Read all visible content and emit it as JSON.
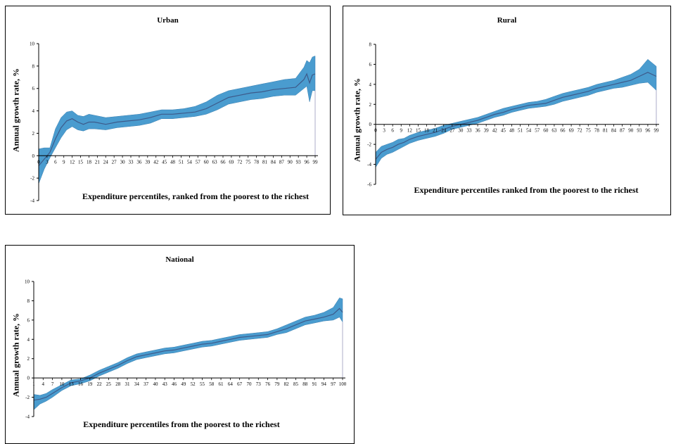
{
  "chart_data": [
    {
      "id": "urban",
      "type": "area",
      "title": "Urban",
      "xlabel": "Expenditure percentiles, ranked from the poorest to the richest",
      "ylabel": "Annual growth rate, %",
      "ylim": [
        -4,
        10
      ],
      "yticks": [
        "-4",
        "-2",
        "0",
        "2",
        "4",
        "6",
        "8",
        "10"
      ],
      "xticks": [
        "0",
        "3",
        "6",
        "9",
        "12",
        "15",
        "18",
        "21",
        "24",
        "27",
        "30",
        "33",
        "36",
        "39",
        "42",
        "45",
        "48",
        "51",
        "54",
        "57",
        "60",
        "63",
        "66",
        "69",
        "72",
        "75",
        "78",
        "81",
        "84",
        "87",
        "90",
        "93",
        "96",
        "99"
      ],
      "xlim": [
        0,
        99
      ],
      "grid": false,
      "band_color": "#4a9ccf",
      "line_color": "#3d5a8a",
      "series": {
        "x": [
          0,
          2,
          4,
          6,
          8,
          10,
          12,
          14,
          16,
          18,
          20,
          24,
          28,
          32,
          36,
          40,
          44,
          48,
          52,
          56,
          60,
          64,
          68,
          72,
          76,
          80,
          84,
          88,
          92,
          95,
          96,
          97,
          98,
          99
        ],
        "mean": [
          -0.9,
          -0.3,
          0.3,
          1.5,
          2.5,
          3.1,
          3.3,
          3.0,
          2.8,
          3.0,
          3.0,
          2.8,
          3.0,
          3.1,
          3.2,
          3.4,
          3.7,
          3.7,
          3.8,
          3.9,
          4.2,
          4.7,
          5.2,
          5.4,
          5.6,
          5.7,
          5.9,
          6.0,
          6.1,
          6.8,
          7.3,
          6.5,
          7.2,
          7.3
        ],
        "upper": [
          0.6,
          0.7,
          0.7,
          2.4,
          3.4,
          3.9,
          4.0,
          3.6,
          3.5,
          3.7,
          3.6,
          3.4,
          3.5,
          3.6,
          3.7,
          3.9,
          4.1,
          4.1,
          4.2,
          4.4,
          4.8,
          5.4,
          5.8,
          6.0,
          6.2,
          6.4,
          6.6,
          6.8,
          6.9,
          7.9,
          8.5,
          8.3,
          8.8,
          8.9
        ],
        "lower": [
          -2.5,
          -1.2,
          -0.2,
          0.7,
          1.6,
          2.3,
          2.6,
          2.3,
          2.2,
          2.4,
          2.4,
          2.3,
          2.5,
          2.6,
          2.7,
          2.9,
          3.3,
          3.3,
          3.4,
          3.5,
          3.7,
          4.1,
          4.6,
          4.8,
          5.0,
          5.1,
          5.3,
          5.4,
          5.4,
          6.0,
          6.2,
          4.8,
          5.8,
          5.8
        ]
      }
    },
    {
      "id": "rural",
      "type": "area",
      "title": "Rural",
      "xlabel": "Expenditure percentiles ranked from the poorest to the richest",
      "ylabel": "Annual growth rate, %",
      "ylim": [
        -6,
        8
      ],
      "yticks": [
        "-6",
        "-4",
        "-2",
        "0",
        "2",
        "4",
        "6",
        "8"
      ],
      "xticks": [
        "0",
        "3",
        "6",
        "9",
        "12",
        "15",
        "18",
        "21",
        "24",
        "27",
        "30",
        "33",
        "36",
        "39",
        "42",
        "45",
        "48",
        "51",
        "54",
        "57",
        "60",
        "63",
        "66",
        "69",
        "72",
        "75",
        "78",
        "81",
        "84",
        "87",
        "90",
        "93",
        "96",
        "99"
      ],
      "xlim": [
        0,
        99
      ],
      "grid": false,
      "band_color": "#4a9ccf",
      "line_color": "#3d5a8a",
      "series": {
        "x": [
          0,
          2,
          4,
          6,
          8,
          10,
          12,
          15,
          18,
          21,
          24,
          27,
          30,
          33,
          36,
          39,
          42,
          45,
          48,
          51,
          54,
          57,
          60,
          63,
          66,
          69,
          72,
          75,
          78,
          81,
          84,
          87,
          90,
          93,
          96,
          99
        ],
        "mean": [
          -3.5,
          -2.8,
          -2.5,
          -2.3,
          -2.0,
          -1.8,
          -1.5,
          -1.2,
          -1.0,
          -0.8,
          -0.5,
          -0.2,
          0.0,
          0.2,
          0.4,
          0.7,
          1.0,
          1.2,
          1.5,
          1.7,
          1.9,
          2.0,
          2.1,
          2.4,
          2.7,
          2.9,
          3.1,
          3.3,
          3.6,
          3.8,
          4.0,
          4.2,
          4.4,
          4.8,
          5.2,
          4.8
        ],
        "upper": [
          -2.8,
          -2.2,
          -2.0,
          -1.8,
          -1.5,
          -1.4,
          -1.1,
          -0.8,
          -0.6,
          -0.4,
          -0.1,
          0.1,
          0.3,
          0.5,
          0.7,
          1.0,
          1.3,
          1.6,
          1.8,
          2.0,
          2.2,
          2.3,
          2.5,
          2.8,
          3.1,
          3.3,
          3.5,
          3.7,
          4.0,
          4.2,
          4.4,
          4.7,
          5.0,
          5.5,
          6.5,
          5.8
        ],
        "lower": [
          -4.3,
          -3.4,
          -3.0,
          -2.8,
          -2.5,
          -2.2,
          -1.9,
          -1.6,
          -1.4,
          -1.2,
          -0.9,
          -0.5,
          -0.3,
          -0.1,
          0.1,
          0.4,
          0.7,
          0.9,
          1.2,
          1.4,
          1.6,
          1.7,
          1.8,
          2.0,
          2.3,
          2.5,
          2.7,
          2.9,
          3.2,
          3.4,
          3.6,
          3.7,
          3.9,
          4.1,
          4.2,
          3.4
        ]
      }
    },
    {
      "id": "national",
      "type": "area",
      "title": "National",
      "xlabel": "Expenditure percentiles from the poorest to the richest",
      "ylabel": "Annual growth rate, %",
      "ylim": [
        -4,
        10
      ],
      "yticks": [
        "-4",
        "-2",
        "0",
        "2",
        "4",
        "6",
        "8",
        "10"
      ],
      "xticks": [
        "1",
        "4",
        "7",
        "10",
        "13",
        "16",
        "19",
        "22",
        "25",
        "28",
        "31",
        "34",
        "37",
        "40",
        "43",
        "46",
        "49",
        "52",
        "55",
        "58",
        "61",
        "64",
        "67",
        "70",
        "73",
        "76",
        "79",
        "82",
        "85",
        "88",
        "91",
        "94",
        "97",
        "100"
      ],
      "xlim": [
        1,
        100
      ],
      "grid": false,
      "band_color": "#4a9ccf",
      "line_color": "#3d5a8a",
      "series": {
        "x": [
          1,
          3,
          5,
          7,
          10,
          13,
          16,
          19,
          22,
          25,
          28,
          31,
          34,
          37,
          40,
          43,
          46,
          49,
          52,
          55,
          58,
          61,
          64,
          67,
          70,
          73,
          76,
          79,
          82,
          85,
          88,
          91,
          94,
          97,
          99,
          100
        ],
        "mean": [
          -2.3,
          -2.2,
          -2.0,
          -1.6,
          -1.0,
          -0.5,
          -0.3,
          0.0,
          0.5,
          0.9,
          1.3,
          1.8,
          2.2,
          2.4,
          2.6,
          2.8,
          2.9,
          3.1,
          3.3,
          3.5,
          3.6,
          3.8,
          4.0,
          4.2,
          4.3,
          4.4,
          4.5,
          4.8,
          5.1,
          5.5,
          5.9,
          6.1,
          6.3,
          6.6,
          7.2,
          6.8
        ],
        "upper": [
          -1.7,
          -1.8,
          -1.6,
          -1.2,
          -0.7,
          -0.2,
          -0.1,
          0.3,
          0.8,
          1.2,
          1.6,
          2.1,
          2.5,
          2.7,
          2.9,
          3.1,
          3.2,
          3.4,
          3.6,
          3.8,
          3.9,
          4.1,
          4.3,
          4.5,
          4.6,
          4.7,
          4.8,
          5.1,
          5.5,
          5.9,
          6.3,
          6.5,
          6.8,
          7.3,
          8.3,
          8.2
        ],
        "lower": [
          -3.3,
          -2.7,
          -2.4,
          -2.0,
          -1.3,
          -0.8,
          -0.6,
          -0.3,
          0.2,
          0.6,
          1.0,
          1.5,
          1.9,
          2.1,
          2.3,
          2.5,
          2.6,
          2.8,
          3.0,
          3.2,
          3.3,
          3.5,
          3.7,
          3.9,
          4.0,
          4.1,
          4.2,
          4.5,
          4.7,
          5.1,
          5.5,
          5.7,
          5.9,
          6.0,
          6.3,
          5.8
        ]
      }
    }
  ]
}
